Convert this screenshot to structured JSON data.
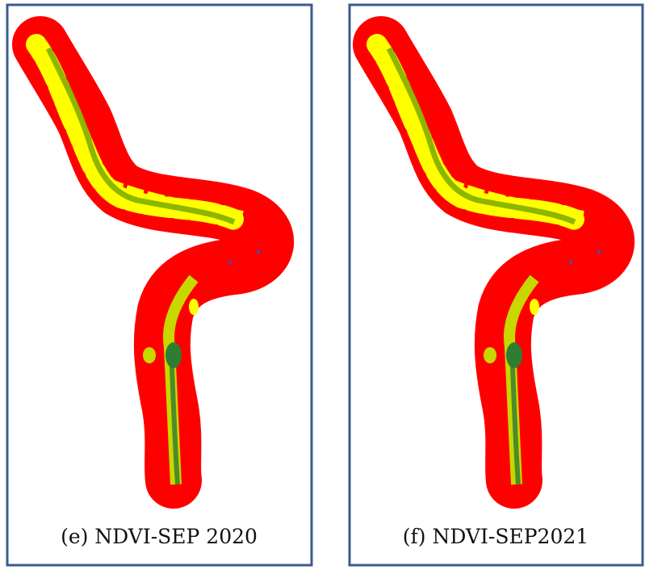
{
  "panels": [
    {
      "caption": "(e) NDVI-SEP 2020"
    },
    {
      "caption": "(f) NDVI-SEP2021"
    }
  ]
}
